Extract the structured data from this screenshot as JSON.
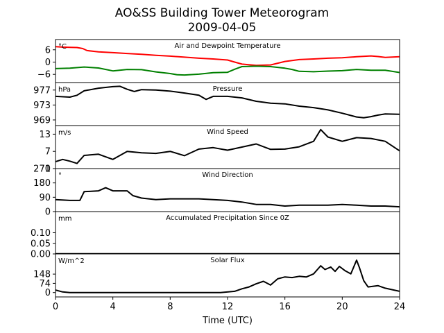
{
  "figure": {
    "title_line1": "AO&SS Building Tower Meteorogram",
    "title_line2": "2009-04-05",
    "xlabel": "Time (UTC)",
    "x_ticks": [
      "0",
      "4",
      "8",
      "12",
      "16",
      "20",
      "24"
    ]
  },
  "chart_data": [
    {
      "type": "line",
      "title": "Air and Dewpoint Temperature",
      "unit": "°C",
      "xlim": [
        0,
        24
      ],
      "ylim": [
        -10,
        11
      ],
      "yticks": [
        6,
        0,
        -6
      ],
      "ytick_labels": [
        "6",
        "0",
        "−6"
      ],
      "series": [
        {
          "color": "#ff0000",
          "x": [
            0,
            0.5,
            1,
            1.5,
            1.9,
            2.2,
            3,
            4,
            5,
            6,
            7,
            8,
            9,
            10,
            11,
            12,
            12.5,
            13,
            14,
            15,
            16,
            17,
            18,
            19,
            20,
            21,
            22,
            22.5,
            23,
            24
          ],
          "y": [
            7.5,
            7.3,
            7.2,
            7.1,
            6.6,
            5.6,
            5.0,
            4.6,
            4.2,
            3.8,
            3.3,
            2.9,
            2.4,
            1.9,
            1.5,
            1.0,
            0.0,
            -1.0,
            -1.6,
            -1.4,
            0.3,
            1.2,
            1.5,
            1.9,
            2.1,
            2.6,
            3.0,
            2.7,
            2.3,
            2.6
          ]
        },
        {
          "color": "#008000",
          "x": [
            0,
            1,
            2,
            3,
            4,
            5,
            6,
            7,
            8,
            8.5,
            9,
            10,
            11,
            12,
            12.5,
            13,
            14,
            15,
            16,
            16.5,
            17,
            18,
            19,
            20,
            21,
            22,
            23,
            24
          ],
          "y": [
            -3.2,
            -3.0,
            -2.4,
            -2.9,
            -4.3,
            -3.6,
            -3.7,
            -4.8,
            -5.6,
            -6.2,
            -6.3,
            -5.9,
            -5.2,
            -5.0,
            -3.5,
            -2.2,
            -2.0,
            -2.2,
            -3.0,
            -3.6,
            -4.5,
            -4.7,
            -4.4,
            -4.2,
            -3.6,
            -4.0,
            -4.0,
            -5.1
          ]
        }
      ]
    },
    {
      "type": "line",
      "title": "Pressure",
      "unit": "hPa",
      "xlim": [
        0,
        24
      ],
      "ylim": [
        967.5,
        979
      ],
      "yticks": [
        977,
        973,
        969
      ],
      "ytick_labels": [
        "977",
        "973",
        "969"
      ],
      "series": [
        {
          "color": "#000000",
          "x": [
            0,
            1,
            1.5,
            2,
            3,
            4,
            4.5,
            5,
            5.5,
            6,
            7,
            8,
            9,
            10,
            10.5,
            11,
            12,
            13,
            14,
            15,
            16,
            17,
            18,
            19,
            20,
            21,
            21.5,
            22,
            22.5,
            23,
            24
          ],
          "y": [
            975.3,
            975.1,
            975.6,
            976.8,
            977.5,
            977.9,
            978.0,
            977.2,
            976.6,
            977.1,
            977.0,
            976.7,
            976.2,
            975.6,
            974.5,
            975.3,
            975.3,
            974.9,
            974.0,
            973.5,
            973.3,
            972.7,
            972.3,
            971.7,
            970.8,
            969.8,
            969.6,
            969.9,
            970.3,
            970.6,
            970.5
          ]
        }
      ]
    },
    {
      "type": "line",
      "title": "Wind Speed",
      "unit": "m/s",
      "xlim": [
        0,
        24
      ],
      "ylim": [
        1,
        16
      ],
      "yticks": [
        13,
        7,
        1
      ],
      "ytick_labels": [
        "13",
        "7",
        "1"
      ],
      "series": [
        {
          "color": "#000000",
          "x": [
            0,
            0.5,
            1,
            1.5,
            2,
            3,
            4,
            5,
            6,
            7,
            8,
            9,
            10,
            11,
            12,
            13,
            14,
            15,
            16,
            17,
            18,
            18.5,
            19,
            20,
            21,
            22,
            23,
            24
          ],
          "y": [
            3.4,
            4.2,
            3.6,
            2.8,
            5.6,
            6.0,
            4.2,
            7.0,
            6.5,
            6.3,
            7.0,
            5.5,
            7.8,
            8.3,
            7.4,
            8.5,
            9.6,
            7.7,
            7.8,
            8.6,
            10.5,
            14.6,
            12.0,
            10.5,
            11.8,
            11.5,
            10.5,
            7.2
          ]
        }
      ]
    },
    {
      "type": "line",
      "title": "Wind Direction",
      "unit": "°",
      "xlim": [
        0,
        24
      ],
      "ylim": [
        0,
        270
      ],
      "yticks": [
        270,
        180,
        90,
        0
      ],
      "ytick_labels": [
        "270",
        "180",
        "90",
        "0"
      ],
      "series": [
        {
          "color": "#000000",
          "x": [
            0,
            1,
            1.7,
            2,
            3,
            3.5,
            4,
            5,
            5.4,
            6,
            7,
            8,
            9,
            10,
            11,
            12,
            13,
            14,
            15,
            16,
            17,
            18,
            19,
            20,
            21,
            22,
            23,
            24
          ],
          "y": [
            75,
            70,
            70,
            125,
            130,
            150,
            130,
            130,
            100,
            85,
            75,
            80,
            80,
            80,
            75,
            70,
            60,
            45,
            45,
            35,
            40,
            40,
            40,
            45,
            40,
            35,
            35,
            30
          ]
        }
      ]
    },
    {
      "type": "line",
      "title": "Accumulated Precipitation Since 0Z",
      "unit": "mm",
      "xlim": [
        0,
        24
      ],
      "ylim": [
        0,
        0.2
      ],
      "yticks": [
        0.1,
        0.05,
        0.0
      ],
      "ytick_labels": [
        "0.10",
        "0.05",
        "0.00"
      ],
      "series": [
        {
          "color": "#000000",
          "x": [
            0,
            24
          ],
          "y": [
            0,
            0
          ]
        }
      ]
    },
    {
      "type": "line",
      "title": "Solar Flux",
      "unit": "W/m^2",
      "xlim": [
        0,
        24
      ],
      "ylim": [
        -35,
        310
      ],
      "yticks": [
        148,
        74,
        0
      ],
      "ytick_labels": [
        "148",
        "74",
        "0"
      ],
      "series": [
        {
          "color": "#000000",
          "x": [
            0,
            0.5,
            1,
            4,
            8,
            11.5,
            12.5,
            13,
            13.5,
            14,
            14.5,
            15,
            15.5,
            16,
            16.5,
            17,
            17.5,
            18,
            18.5,
            18.8,
            19.2,
            19.5,
            19.8,
            20.2,
            20.6,
            21.0,
            21.2,
            21.5,
            21.8,
            22.5,
            23,
            24
          ],
          "y": [
            20,
            5,
            0,
            0,
            0,
            0,
            10,
            30,
            45,
            70,
            90,
            60,
            110,
            125,
            120,
            130,
            125,
            150,
            215,
            185,
            205,
            170,
            210,
            175,
            150,
            260,
            200,
            95,
            45,
            55,
            35,
            10
          ]
        }
      ]
    }
  ]
}
